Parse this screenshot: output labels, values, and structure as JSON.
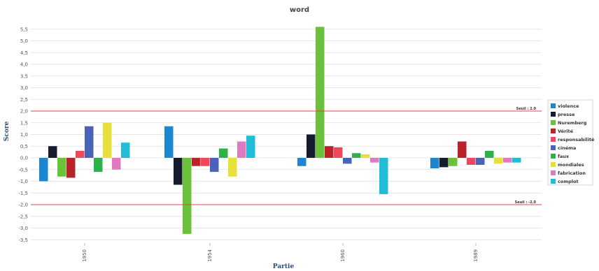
{
  "chart_data": {
    "type": "bar",
    "title": "word",
    "xlabel": "Partie",
    "ylabel": "Score",
    "ylim": [
      -4,
      5.8
    ],
    "yticks": [
      "5,5",
      "5,0",
      "4,5",
      "4,0",
      "3,5",
      "3,0",
      "2,5",
      "2,0",
      "1,5",
      "1,0",
      "0,5",
      "0,0",
      "-0,5",
      "-1,0",
      "-1,5",
      "-2,0",
      "-2,5",
      "-3,0",
      "-3,5"
    ],
    "ytick_values": [
      5.5,
      5,
      4.5,
      4,
      3.5,
      3,
      2.5,
      2,
      1.5,
      1,
      0.5,
      0,
      -0.5,
      -1,
      -1.5,
      -2,
      -2.5,
      -3,
      -3.5
    ],
    "categories": [
      "1950",
      "1954",
      "1960",
      "1989"
    ],
    "grid": true,
    "legend_position": "right",
    "thresholds": [
      {
        "value": 2.0,
        "label": "Seuil : 2.0",
        "color": "#e0474c"
      },
      {
        "value": -2.0,
        "label": "Seuil : -2.0",
        "color": "#e0474c"
      }
    ],
    "series": [
      {
        "name": "violence",
        "color": "#1b86d1",
        "values": [
          -1.0,
          1.35,
          -0.35,
          -0.45
        ]
      },
      {
        "name": "presse",
        "color": "#141c2e",
        "values": [
          0.5,
          -1.15,
          1.0,
          -0.4
        ]
      },
      {
        "name": "Nuremberg",
        "color": "#69c23a",
        "values": [
          -0.8,
          -3.25,
          5.6,
          -0.35
        ]
      },
      {
        "name": "Vérité",
        "color": "#b8242a",
        "values": [
          -0.85,
          -0.35,
          0.5,
          0.7
        ]
      },
      {
        "name": "responsabilité",
        "color": "#f0475a",
        "values": [
          0.3,
          -0.35,
          0.45,
          -0.3
        ]
      },
      {
        "name": "cinéma",
        "color": "#4a62b8",
        "values": [
          1.35,
          -0.6,
          -0.25,
          -0.3
        ]
      },
      {
        "name": "faux",
        "color": "#2bb34a",
        "values": [
          -0.6,
          0.4,
          0.2,
          0.3
        ]
      },
      {
        "name": "mondiales",
        "color": "#e8e03a",
        "values": [
          1.5,
          -0.8,
          0.15,
          -0.25
        ]
      },
      {
        "name": "fabrication",
        "color": "#e07ac0",
        "values": [
          -0.5,
          0.7,
          -0.2,
          -0.2
        ]
      },
      {
        "name": "complot",
        "color": "#21bcd6",
        "values": [
          0.65,
          0.95,
          -1.55,
          -0.2
        ]
      }
    ]
  }
}
